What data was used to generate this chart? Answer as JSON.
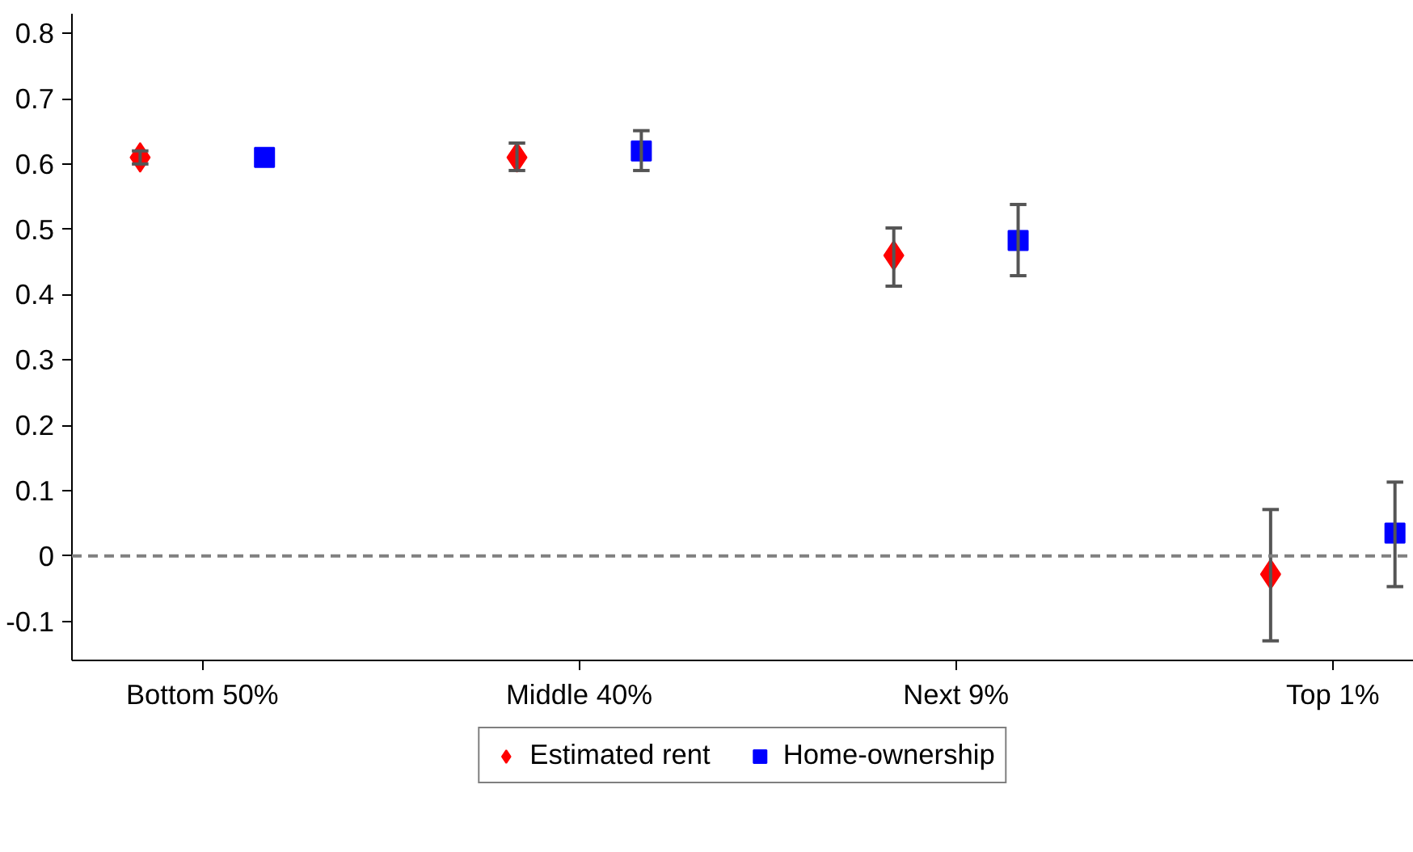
{
  "chart_data": {
    "type": "scatter",
    "categories": [
      "Bottom 50%",
      "Middle 40%",
      "Next 9%",
      "Top 1%"
    ],
    "series": [
      {
        "name": "Estimated rent",
        "color": "#ff0000",
        "marker": "diamond",
        "values": [
          0.61,
          0.61,
          0.46,
          -0.028
        ],
        "errors": [
          [
            0.6,
            0.62
          ],
          [
            0.59,
            0.632
          ],
          [
            0.413,
            0.502
          ],
          [
            -0.13,
            0.071
          ]
        ]
      },
      {
        "name": "Home-ownership",
        "color": "#0000ff",
        "marker": "square",
        "values": [
          0.61,
          0.62,
          0.483,
          0.035
        ],
        "errors": [
          null,
          [
            0.59,
            0.651
          ],
          [
            0.429,
            0.538
          ],
          [
            -0.047,
            0.113
          ]
        ]
      }
    ],
    "ylim": [
      -0.16,
      0.83
    ],
    "yticks": [
      -0.1,
      0,
      0.1,
      0.2,
      0.3,
      0.4,
      0.5,
      0.6,
      0.7,
      0.8
    ],
    "ref_lines": [
      {
        "axis": "y",
        "value": 0,
        "color": "#808080",
        "line_style": "dashed"
      }
    ],
    "grid": false,
    "legend": "bottom"
  }
}
